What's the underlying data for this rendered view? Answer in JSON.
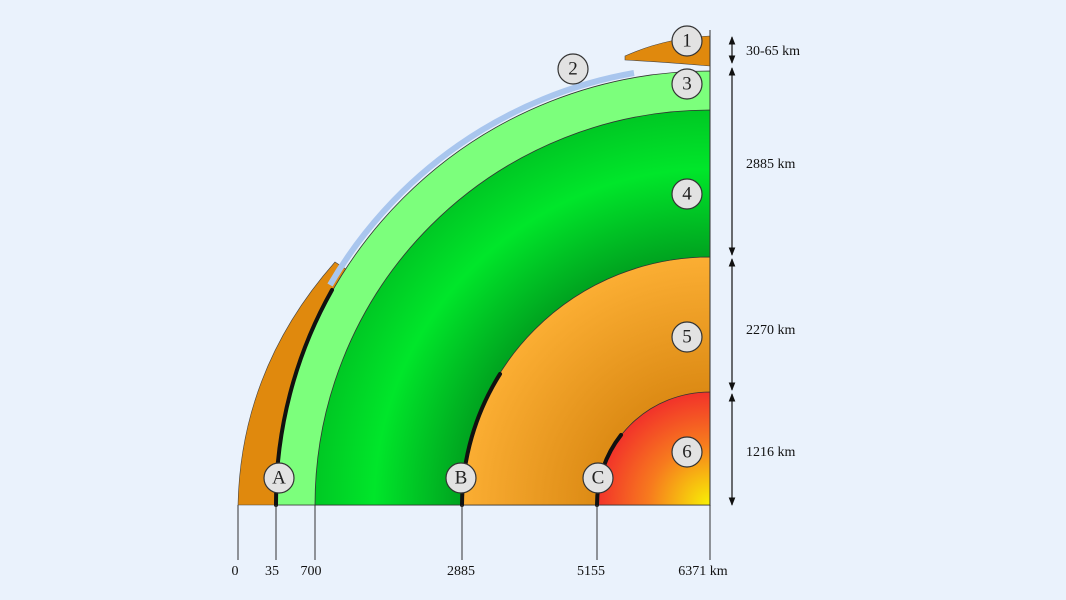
{
  "layers": [
    {
      "number": "1"
    },
    {
      "number": "2"
    },
    {
      "number": "3"
    },
    {
      "number": "4"
    },
    {
      "number": "5"
    },
    {
      "number": "6"
    }
  ],
  "boundaries": [
    {
      "letter": "A"
    },
    {
      "letter": "B"
    },
    {
      "letter": "C"
    }
  ],
  "depth_labels": [
    "0",
    "35",
    "700",
    "2885",
    "5155",
    "6371 km"
  ],
  "thickness_labels": [
    "30-65 km",
    "2885 km",
    "2270 km",
    "1216 km"
  ]
}
